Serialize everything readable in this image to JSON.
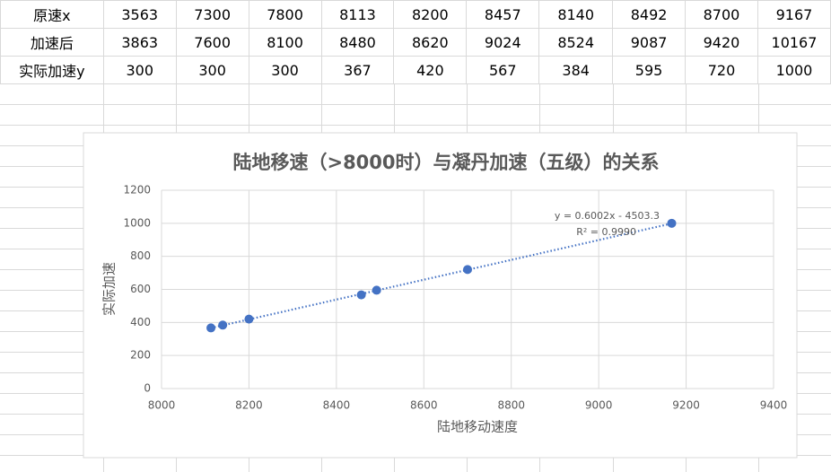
{
  "table": {
    "rows": [
      [
        "原速x",
        "3563",
        "7300",
        "7800",
        "8113",
        "8200",
        "8457",
        "8140",
        "8492",
        "8700",
        "9167"
      ],
      [
        "加速后",
        "3863",
        "7600",
        "8100",
        "8480",
        "8620",
        "9024",
        "8524",
        "9087",
        "9420",
        "10167"
      ],
      [
        "实际加速y",
        "300",
        "300",
        "300",
        "367",
        "420",
        "567",
        "384",
        "595",
        "720",
        "1000"
      ]
    ]
  },
  "chart_data": {
    "type": "scatter",
    "title": "陆地移速（>8000时）与凝丹加速（五级）的关系",
    "xlabel": "陆地移动速度",
    "ylabel": "实际加速",
    "series": [
      {
        "color": "#4472c4",
        "x": [
          8113,
          8200,
          8457,
          8140,
          8492,
          8700,
          9167
        ],
        "values": [
          367,
          420,
          567,
          384,
          595,
          720,
          1000
        ]
      }
    ],
    "trendline": {
      "slope": 0.6002,
      "intercept": -4503.3,
      "label": "y = 0.6002x - 4503.3",
      "r2_label": "R² = 0.9990"
    },
    "xlim": [
      8000,
      9400
    ],
    "xticks": [
      8000,
      8200,
      8400,
      8600,
      8800,
      9000,
      9200,
      9400
    ],
    "ylim": [
      0,
      1200
    ],
    "yticks": [
      0,
      200,
      400,
      600,
      800,
      1000,
      1200
    ],
    "grid": true
  }
}
